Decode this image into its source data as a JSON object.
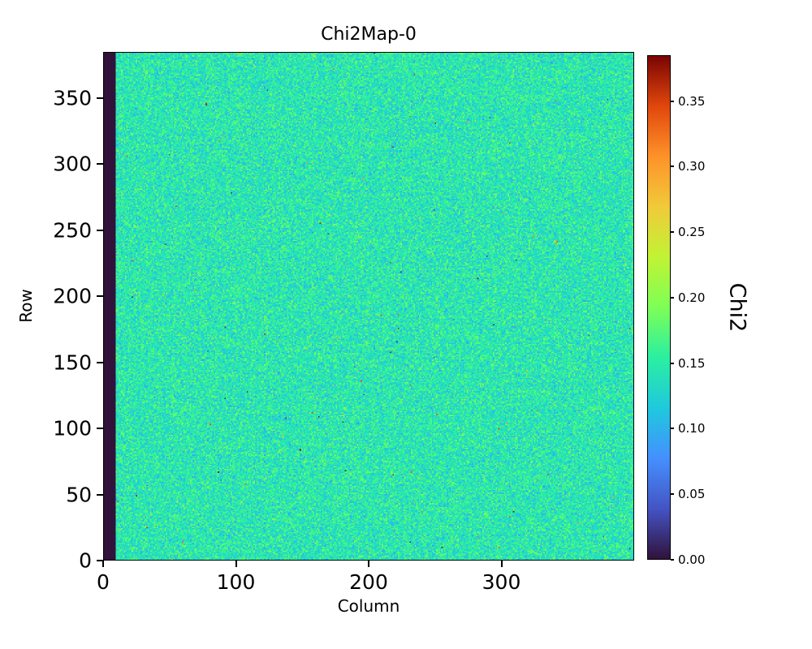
{
  "chart_data": {
    "type": "heatmap",
    "title": "Chi2Map-0",
    "xlabel": "Column",
    "ylabel": "Row",
    "x_max": 400,
    "y_max": 385,
    "x_ticks": [
      0,
      100,
      200,
      300
    ],
    "y_ticks": [
      0,
      50,
      100,
      150,
      200,
      250,
      300,
      350
    ],
    "grid": false,
    "legend": null,
    "colorbar": {
      "label": "Chi2",
      "vmin": 0.0,
      "vmax": 0.385,
      "tick_labels": [
        "0.00",
        "0.05",
        "0.10",
        "0.15",
        "0.20",
        "0.25",
        "0.30",
        "0.35"
      ],
      "colormap": "turbo",
      "stops": [
        [
          0.0,
          "#30123b"
        ],
        [
          0.1,
          "#4454c4"
        ],
        [
          0.2,
          "#4490fe"
        ],
        [
          0.3,
          "#1fc9dd"
        ],
        [
          0.4,
          "#2aefa1"
        ],
        [
          0.5,
          "#7dff56"
        ],
        [
          0.6,
          "#c1f334"
        ],
        [
          0.7,
          "#f1ca3a"
        ],
        [
          0.8,
          "#fe922a"
        ],
        [
          0.9,
          "#e1470c"
        ],
        [
          1.0,
          "#7a0403"
        ]
      ]
    },
    "data_summary": {
      "pattern": "random speckle noise over full detector area",
      "noise_mean": 0.145,
      "noise_std": 0.022,
      "outlier_fraction": 0.002,
      "n_dark_columns": 9,
      "dark_column_value": 0.0
    }
  }
}
